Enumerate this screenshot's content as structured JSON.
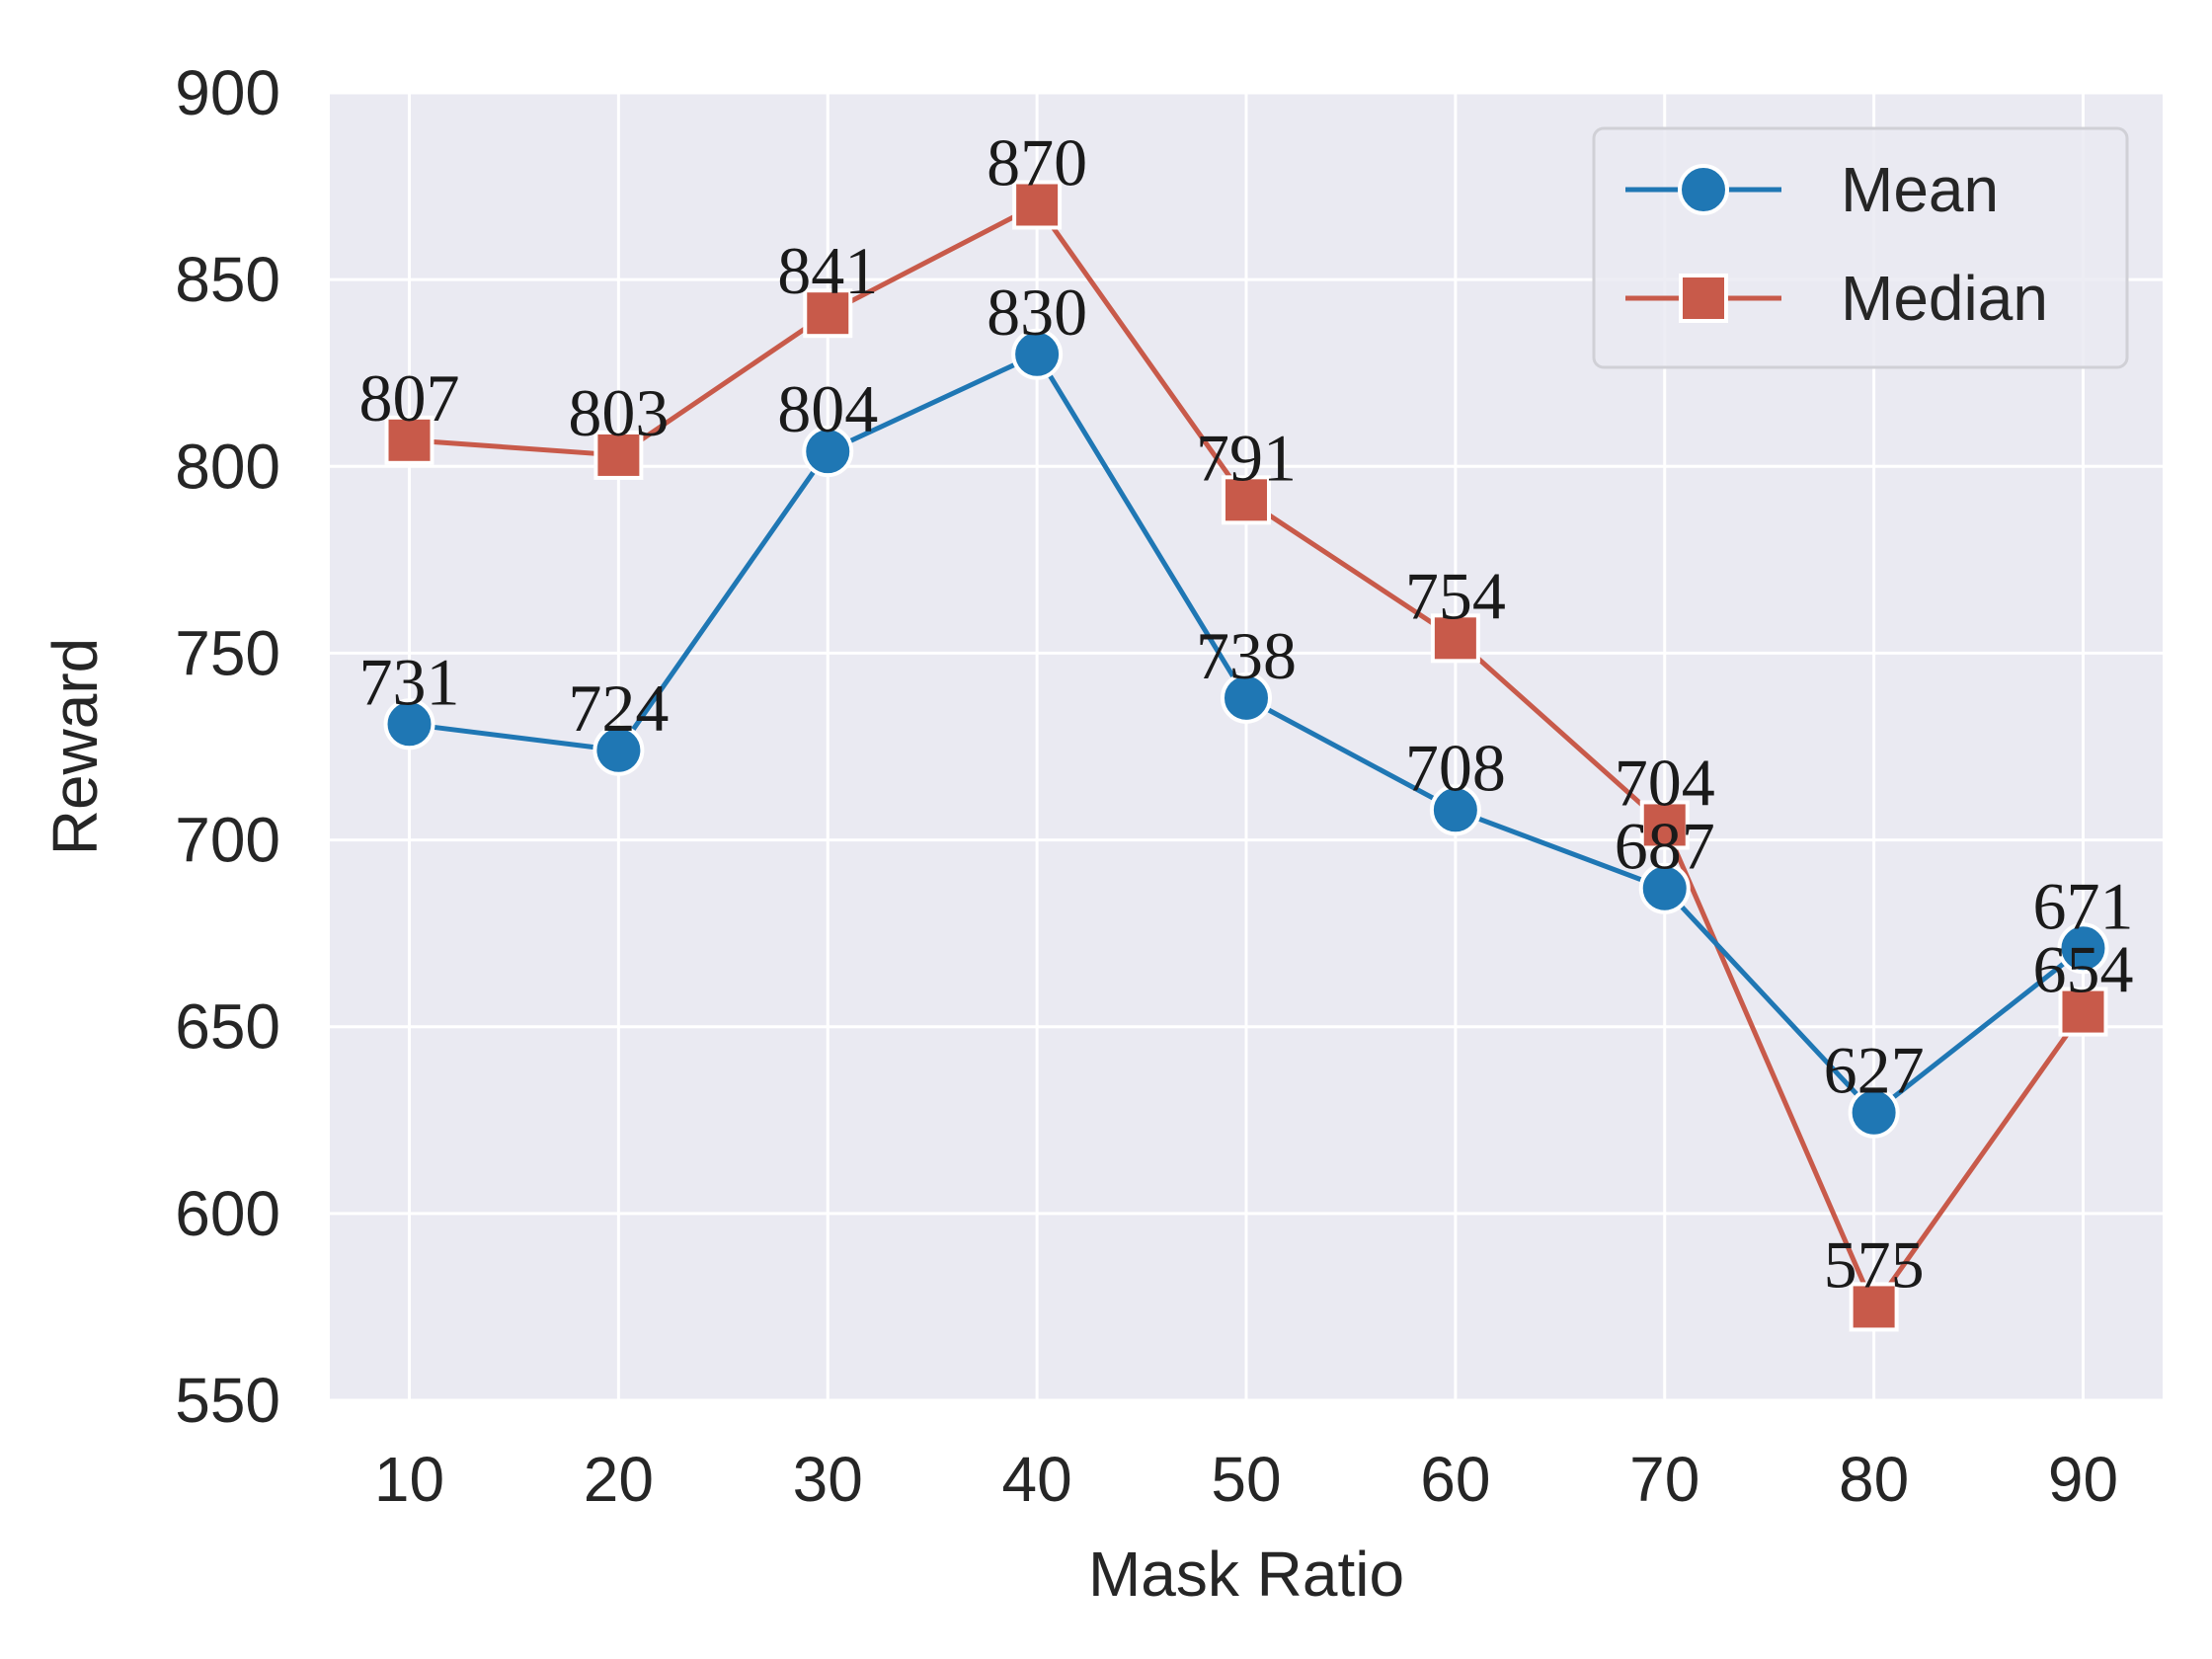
{
  "chart_data": {
    "type": "line",
    "title": "",
    "xlabel": "Mask Ratio",
    "ylabel": "Reward",
    "x": [
      10,
      20,
      30,
      40,
      50,
      60,
      70,
      80,
      90
    ],
    "ylim": [
      550,
      900
    ],
    "yticks": [
      550,
      600,
      650,
      700,
      750,
      800,
      850,
      900
    ],
    "grid": true,
    "legend_position": "top-right",
    "series": [
      {
        "name": "Mean",
        "marker": "circle",
        "color": "#1f77b4",
        "values": [
          731,
          724,
          804,
          830,
          738,
          708,
          687,
          627,
          671
        ]
      },
      {
        "name": "Median",
        "marker": "square",
        "color": "#c85a4a",
        "values": [
          807,
          803,
          841,
          870,
          791,
          754,
          704,
          575,
          654
        ]
      }
    ],
    "colors": {
      "background": "#eaeaf2",
      "grid": "#ffffff",
      "text": "#262626"
    }
  }
}
